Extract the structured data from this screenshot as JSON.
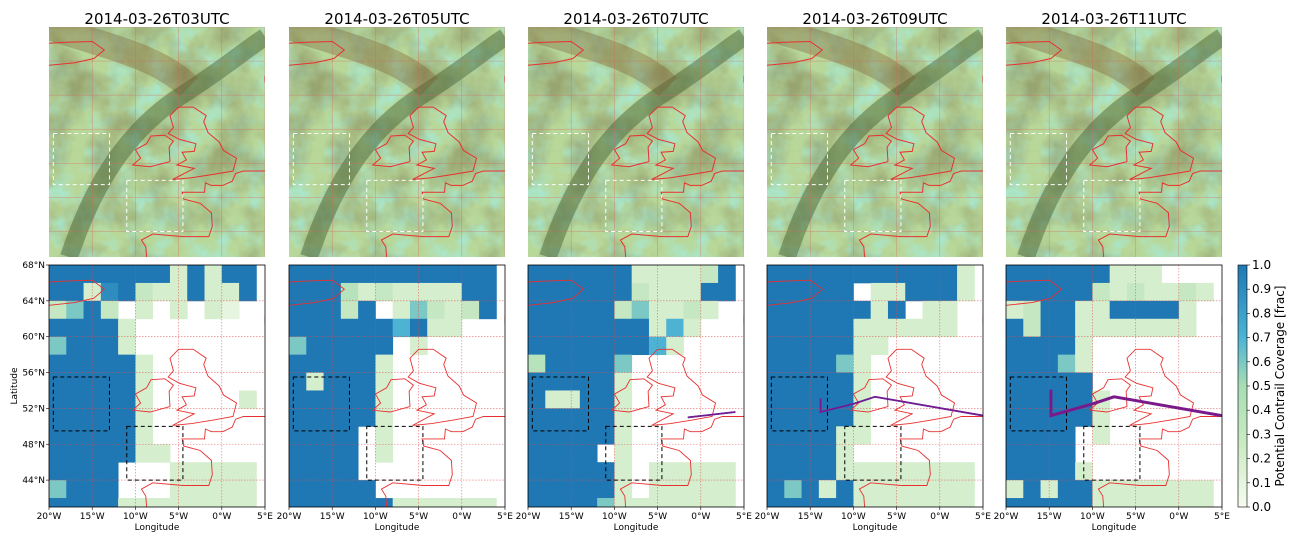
{
  "chart_data": {
    "type": "heatmap",
    "panel_titles": [
      "2014-03-26T03UTC",
      "2014-03-26T05UTC",
      "2014-03-26T07UTC",
      "2014-03-26T09UTC",
      "2014-03-26T11UTC"
    ],
    "map_extent": {
      "lon": [
        -20,
        5
      ],
      "lat": [
        41,
        68
      ]
    },
    "grid": {
      "rows": 14,
      "cols": 12,
      "lat_step": 2,
      "lon_step": 2,
      "top_lat": 68,
      "left_lon": -20
    },
    "xlabel": "Longitude",
    "ylabel": "Latitude",
    "x_ticks": [
      "20°W",
      "15°W",
      "10°W",
      "5°W",
      "0°W",
      "5°E"
    ],
    "x_tick_values": [
      -20,
      -15,
      -10,
      -5,
      0,
      5
    ],
    "y_ticks": [
      "68°N",
      "64°N",
      "60°N",
      "56°N",
      "52°N",
      "48°N",
      "44°N"
    ],
    "y_tick_values": [
      68,
      64,
      60,
      56,
      52,
      48,
      44
    ],
    "colorbar": {
      "label": "Potential Contrail Coverage [frac]",
      "range": [
        0,
        1
      ],
      "ticks": [
        "0.0",
        "0.1",
        "0.2",
        "0.3",
        "0.4",
        "0.5",
        "0.6",
        "0.7",
        "0.8",
        "0.9",
        "1.0"
      ],
      "tick_values": [
        0,
        0.1,
        0.2,
        0.3,
        0.4,
        0.5,
        0.6,
        0.7,
        0.8,
        0.9,
        1.0
      ]
    },
    "boxes": [
      {
        "lon": [
          -19.5,
          -13
        ],
        "lat": [
          49.5,
          55.5
        ]
      },
      {
        "lon": [
          -11,
          -4.5
        ],
        "lat": [
          44,
          50
        ]
      }
    ],
    "coverage_grids": [
      [
        [
          1,
          1,
          1,
          1,
          1,
          1,
          1,
          0.2,
          1,
          0.2,
          1,
          1
        ],
        [
          1,
          1,
          0.2,
          0.9,
          1,
          0.3,
          0.2,
          0.2,
          1,
          0.2,
          0.2,
          1
        ],
        [
          0.3,
          0.6,
          1,
          0.3,
          0,
          0.2,
          0,
          0.2,
          0,
          0.2,
          0.1,
          0
        ],
        [
          1,
          1,
          1,
          1,
          0.2,
          0,
          0,
          0,
          0,
          0,
          0,
          0
        ],
        [
          0.6,
          1,
          1,
          1,
          0.2,
          0,
          0,
          0,
          0,
          0,
          0,
          0
        ],
        [
          1,
          1,
          1,
          1,
          1,
          0.2,
          0,
          0,
          0,
          0,
          0,
          0
        ],
        [
          1,
          1,
          1,
          1,
          1,
          0.2,
          0,
          0,
          0,
          0,
          0,
          0
        ],
        [
          1,
          1,
          1,
          1,
          1,
          0.2,
          0,
          0,
          0,
          0,
          0,
          0.2
        ],
        [
          1,
          1,
          1,
          1,
          1,
          0.2,
          0,
          0,
          0,
          0,
          0,
          0
        ],
        [
          1,
          1,
          1,
          1,
          1,
          0.2,
          0,
          0,
          0,
          0,
          0,
          0
        ],
        [
          1,
          1,
          1,
          1,
          1,
          0.2,
          0.2,
          0,
          0,
          0,
          0,
          0
        ],
        [
          1,
          1,
          1,
          1,
          0,
          0,
          0,
          0.2,
          0.2,
          0.2,
          0.2,
          0.2
        ],
        [
          0.6,
          1,
          1,
          1,
          0,
          0,
          0,
          0.2,
          0.2,
          0.2,
          0.2,
          0.2
        ],
        [
          1,
          1,
          1,
          1,
          0.2,
          0.2,
          0.2,
          0.2,
          0.2,
          0.2,
          0.2,
          0.2
        ]
      ],
      [
        [
          1,
          1,
          1,
          1,
          1,
          1,
          1,
          1,
          1,
          1,
          1,
          1
        ],
        [
          1,
          1,
          1,
          0.4,
          0.2,
          0.3,
          0.2,
          0.2,
          0.2,
          0.2,
          1,
          1
        ],
        [
          1,
          1,
          1,
          0.3,
          1,
          0,
          0.2,
          0.6,
          0.3,
          0.2,
          0.3,
          1
        ],
        [
          1,
          1,
          1,
          1,
          1,
          1,
          0.7,
          1,
          0.2,
          0.2,
          0,
          0
        ],
        [
          0.6,
          1,
          1,
          1,
          1,
          1,
          0,
          0.2,
          0,
          0,
          0,
          0
        ],
        [
          1,
          1,
          1,
          1,
          1,
          0.2,
          0,
          0,
          0,
          0,
          0,
          0
        ],
        [
          1,
          0.2,
          1,
          1,
          1,
          0.2,
          0,
          0,
          0,
          0,
          0,
          0
        ],
        [
          1,
          1,
          1,
          1,
          1,
          0.2,
          0,
          0,
          0,
          0,
          0,
          0
        ],
        [
          1,
          1,
          1,
          1,
          1,
          0.2,
          0,
          0,
          0,
          0,
          0,
          0
        ],
        [
          1,
          1,
          1,
          1,
          0,
          0.2,
          0,
          0,
          0,
          0,
          0,
          0
        ],
        [
          1,
          1,
          1,
          1,
          0,
          0.2,
          0,
          0,
          0,
          0,
          0,
          0
        ],
        [
          1,
          1,
          1,
          1,
          0,
          0,
          0,
          0,
          0,
          0,
          0,
          0
        ],
        [
          1,
          1,
          1,
          1,
          1,
          0,
          0,
          0,
          0,
          0,
          0,
          0
        ],
        [
          1,
          1,
          1,
          1,
          1,
          1,
          0.2,
          0.2,
          0.2,
          0.2,
          0.2,
          0.2
        ]
      ],
      [
        [
          1,
          1,
          1,
          1,
          1,
          1,
          0.2,
          0.2,
          0.2,
          0.2,
          0.3,
          1
        ],
        [
          1,
          1,
          1,
          1,
          1,
          1,
          0.3,
          0.2,
          0.2,
          0.2,
          1,
          1
        ],
        [
          1,
          1,
          1,
          1,
          1,
          0.3,
          0.6,
          0.2,
          0.2,
          0.3,
          0.2,
          0
        ],
        [
          1,
          1,
          1,
          1,
          1,
          1,
          1,
          0.2,
          0.7,
          0.2,
          0,
          0
        ],
        [
          1,
          1,
          1,
          1,
          1,
          1,
          1,
          0.7,
          0.2,
          0,
          0,
          0
        ],
        [
          0.4,
          1,
          1,
          1,
          1,
          0.6,
          0,
          0,
          0,
          0,
          0,
          0
        ],
        [
          1,
          1,
          1,
          1,
          1,
          0.2,
          0,
          0,
          0,
          0,
          0,
          0
        ],
        [
          1,
          0.2,
          0.2,
          1,
          1,
          0.2,
          0,
          0,
          0,
          0,
          0,
          0
        ],
        [
          1,
          1,
          1,
          1,
          1,
          0.2,
          0,
          0,
          0,
          0,
          0,
          0
        ],
        [
          1,
          1,
          1,
          1,
          1,
          0.2,
          0,
          0,
          0,
          0,
          0,
          0
        ],
        [
          1,
          1,
          1,
          1,
          0,
          0.2,
          0,
          0,
          0,
          0,
          0,
          0
        ],
        [
          1,
          1,
          1,
          1,
          1,
          0.2,
          0,
          0.2,
          0.2,
          0.2,
          0.2,
          0.2
        ],
        [
          1,
          1,
          1,
          1,
          1,
          0.2,
          0,
          0.2,
          0.2,
          0.2,
          0.2,
          0.2
        ],
        [
          1,
          1,
          1,
          1,
          0.6,
          0.2,
          0.2,
          0.2,
          0.2,
          0.2,
          0.2,
          0.2
        ]
      ],
      [
        [
          1,
          1,
          1,
          1,
          1,
          1,
          1,
          1,
          1,
          1,
          1,
          0.2
        ],
        [
          1,
          1,
          1,
          1,
          1,
          0,
          0.2,
          0.2,
          1,
          1,
          1,
          0.2
        ],
        [
          1,
          1,
          1,
          1,
          1,
          1,
          0.2,
          1,
          0,
          0.2,
          0.2,
          0
        ],
        [
          1,
          1,
          1,
          1,
          1,
          0.2,
          0.2,
          0.2,
          0.2,
          0.2,
          0.2,
          0
        ],
        [
          1,
          1,
          1,
          1,
          1,
          0.2,
          0.2,
          0,
          0,
          0,
          0,
          0
        ],
        [
          1,
          1,
          1,
          1,
          0.6,
          0.2,
          0,
          0,
          0,
          0,
          0,
          0
        ],
        [
          1,
          1,
          1,
          1,
          1,
          0.2,
          0,
          0,
          0,
          0,
          0,
          0
        ],
        [
          1,
          1,
          1,
          1,
          1,
          0.2,
          0,
          0,
          0,
          0,
          0,
          0
        ],
        [
          1,
          1,
          1,
          1,
          1,
          0.2,
          0,
          0,
          0,
          0,
          0,
          0
        ],
        [
          1,
          1,
          1,
          1,
          0.2,
          0.2,
          0,
          0,
          0,
          0,
          0,
          0
        ],
        [
          1,
          1,
          1,
          1,
          0.2,
          0,
          0,
          0,
          0,
          0,
          0,
          0
        ],
        [
          1,
          1,
          1,
          1,
          0.2,
          0.2,
          0.2,
          0.2,
          0.2,
          0.2,
          0.2,
          0.2
        ],
        [
          1,
          0.6,
          1,
          0.2,
          1,
          0.2,
          0.2,
          0.2,
          0.2,
          0.2,
          0.2,
          0.2
        ],
        [
          1,
          1,
          1,
          1,
          1,
          0.2,
          0.2,
          0.2,
          0.2,
          0.2,
          0.2,
          0.2
        ]
      ],
      [
        [
          1,
          1,
          1,
          1,
          1,
          1,
          0.2,
          0.2,
          0.2,
          0,
          0,
          0
        ],
        [
          1,
          1,
          1,
          1,
          1,
          0.3,
          0.2,
          0.3,
          0.2,
          0.2,
          0.3,
          0.2
        ],
        [
          0.2,
          0.3,
          1,
          1,
          0.2,
          0.2,
          1,
          1,
          1,
          1,
          0.2,
          0
        ],
        [
          1,
          0.3,
          1,
          1,
          0.2,
          0.2,
          0.2,
          0.2,
          0.2,
          0.2,
          0.2,
          0
        ],
        [
          1,
          1,
          1,
          1,
          0.2,
          0,
          0,
          0,
          0,
          0,
          0,
          0
        ],
        [
          1,
          1,
          1,
          0.6,
          0.2,
          0,
          0,
          0,
          0,
          0,
          0,
          0
        ],
        [
          1,
          1,
          1,
          1,
          1,
          0,
          0,
          0,
          0,
          0,
          0,
          0
        ],
        [
          1,
          1,
          1,
          1,
          1,
          0.2,
          0,
          0,
          0,
          0,
          0,
          0
        ],
        [
          1,
          1,
          1,
          1,
          1,
          0.2,
          0,
          0,
          0,
          0,
          0,
          0
        ],
        [
          1,
          1,
          1,
          1,
          0,
          0.2,
          0,
          0,
          0,
          0,
          0,
          0
        ],
        [
          1,
          1,
          1,
          1,
          0,
          0,
          0,
          0,
          0,
          0,
          0,
          0
        ],
        [
          1,
          1,
          1,
          1,
          0.2,
          0,
          0,
          0,
          0,
          0,
          0,
          0
        ],
        [
          0.2,
          1,
          0.2,
          1,
          1,
          0.2,
          0.2,
          0.2,
          0.2,
          0.2,
          0.2,
          0.2
        ],
        [
          1,
          1,
          1,
          1,
          1,
          0.2,
          0.2,
          0.2,
          0.2,
          0.2,
          0.2,
          0.2
        ]
      ]
    ],
    "flight_tracks": [
      [],
      [],
      [
        [
          -1.5,
          51.0
        ],
        [
          4.0,
          51.6
        ]
      ],
      [
        [
          -13.8,
          53.1
        ],
        [
          -13.8,
          51.6
        ],
        [
          -10,
          52.5
        ],
        [
          -7.5,
          53.3
        ],
        [
          5,
          51.2
        ]
      ],
      [
        [
          -14.8,
          54.1
        ],
        [
          -14.8,
          51.2
        ],
        [
          -10,
          52.5
        ],
        [
          -7.5,
          53.3
        ],
        [
          5,
          51.2
        ]
      ]
    ],
    "colors": {
      "satellite_base": "#b8d89a",
      "cloud_dark": "#4a5a2a",
      "cloud_cyan": "#5fd4b8",
      "coast": "#e83030",
      "track": "#7a1a8a",
      "track_edge": "#2f3ad8"
    }
  }
}
